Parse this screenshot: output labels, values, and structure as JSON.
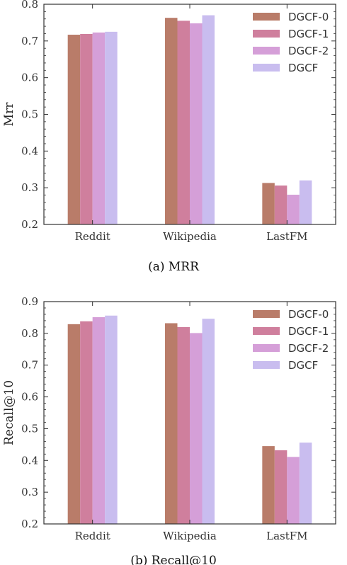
{
  "colors": {
    "DGCF-0": "#b97c69",
    "DGCF-1": "#cf7f9d",
    "DGCF-2": "#d59fd8",
    "DGCF": "#c9bdef"
  },
  "chart_data": [
    {
      "type": "bar",
      "categories": [
        "Reddit",
        "Wikipedia",
        "LastFM"
      ],
      "series": [
        {
          "name": "DGCF-0",
          "values": [
            0.717,
            0.763,
            0.313
          ]
        },
        {
          "name": "DGCF-1",
          "values": [
            0.719,
            0.755,
            0.306
          ]
        },
        {
          "name": "DGCF-2",
          "values": [
            0.723,
            0.748,
            0.281
          ]
        },
        {
          "name": "DGCF",
          "values": [
            0.725,
            0.77,
            0.32
          ]
        }
      ],
      "title": "",
      "xlabel": "",
      "ylabel": "Mrr",
      "ylim": [
        0.2,
        0.8
      ],
      "yticks": [
        "0.2",
        "0.3",
        "0.4",
        "0.5",
        "0.6",
        "0.7",
        "0.8"
      ],
      "legend_position": "top-right",
      "caption": "(a)  MRR"
    },
    {
      "type": "bar",
      "categories": [
        "Reddit",
        "Wikipedia",
        "LastFM"
      ],
      "series": [
        {
          "name": "DGCF-0",
          "values": [
            0.829,
            0.832,
            0.445
          ]
        },
        {
          "name": "DGCF-1",
          "values": [
            0.838,
            0.82,
            0.432
          ]
        },
        {
          "name": "DGCF-2",
          "values": [
            0.851,
            0.801,
            0.411
          ]
        },
        {
          "name": "DGCF",
          "values": [
            0.856,
            0.846,
            0.456
          ]
        }
      ],
      "title": "",
      "xlabel": "",
      "ylabel": "Recall@10",
      "ylim": [
        0.2,
        0.9
      ],
      "yticks": [
        "0.2",
        "0.3",
        "0.4",
        "0.5",
        "0.6",
        "0.7",
        "0.8",
        "0.9"
      ],
      "legend_position": "top-right",
      "caption": "(b)  Recall@10"
    }
  ]
}
